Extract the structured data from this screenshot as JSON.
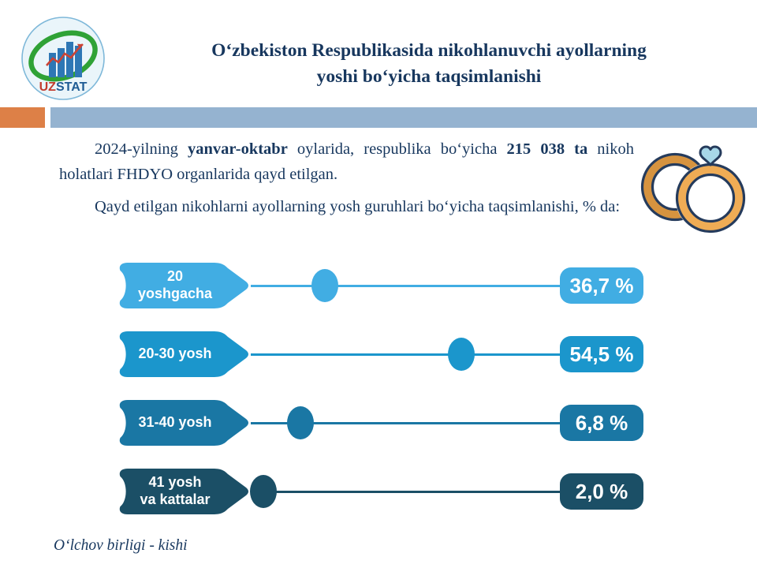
{
  "header": {
    "title_lines": [
      "Oʻzbekiston Respublikasida nikohlanuvchi ayollarning",
      "yoshi boʻyicha taqsimlanishi"
    ],
    "logo": {
      "text_uz": "UZ",
      "text_stat": "STAT",
      "icon": "uzstat-logo"
    }
  },
  "accent": {
    "orange": "#DD8047",
    "bar_blue": "#95B3D0",
    "text_navy": "#17375E"
  },
  "intro": {
    "p1": {
      "pre": "2024-yilning ",
      "bold1": "yanvar-oktabr",
      "mid": " oylarida, respublika boʻyicha ",
      "bold2": "215 038 ta",
      "tail": " nikoh holatlari FHDYO organlarida qayd etilgan."
    },
    "p2": "Qayd etilgan nikohlarni ayollarning yosh guruhlari boʻyicha taqsimlanishi, % da:",
    "rings_icon": "wedding-rings-icon"
  },
  "chart_data": {
    "type": "bar",
    "title": "Qayd etilgan nikohlarni ayollarning yosh guruhlari boʻyicha taqsimlanishi, % da",
    "unit": "%",
    "categories": [
      "20 yoshgacha",
      "20-30 yosh",
      "31-40 yosh",
      "41 yosh va kattalar"
    ],
    "values": [
      36.7,
      54.5,
      6.8,
      2.0
    ],
    "legend_position": "none",
    "grid": false,
    "rows": [
      {
        "category": "20 yoshgacha",
        "label_line1": "20",
        "label_line2": "yoshgacha",
        "value": 36.7,
        "value_label": "36,7 %",
        "color": "#41ADE3",
        "dot_percent": 24
      },
      {
        "category": "20-30 yosh",
        "label_line1": "20-30 yosh",
        "label_line2": "",
        "value": 54.5,
        "value_label": "54,5 %",
        "color": "#1B96CC",
        "dot_percent": 68
      },
      {
        "category": "31-40 yosh",
        "label_line1": "31-40 yosh",
        "label_line2": "",
        "value": 6.8,
        "value_label": "6,8 %",
        "color": "#1A77A4",
        "dot_percent": 16
      },
      {
        "category": "41 yosh va kattalar",
        "label_line1": "41 yosh",
        "label_line2": "va kattalar",
        "value": 2.0,
        "value_label": "2,0 %",
        "color": "#1B4F66",
        "dot_percent": 4
      }
    ]
  },
  "footer": {
    "note": "Oʻlchov birligi - kishi"
  }
}
